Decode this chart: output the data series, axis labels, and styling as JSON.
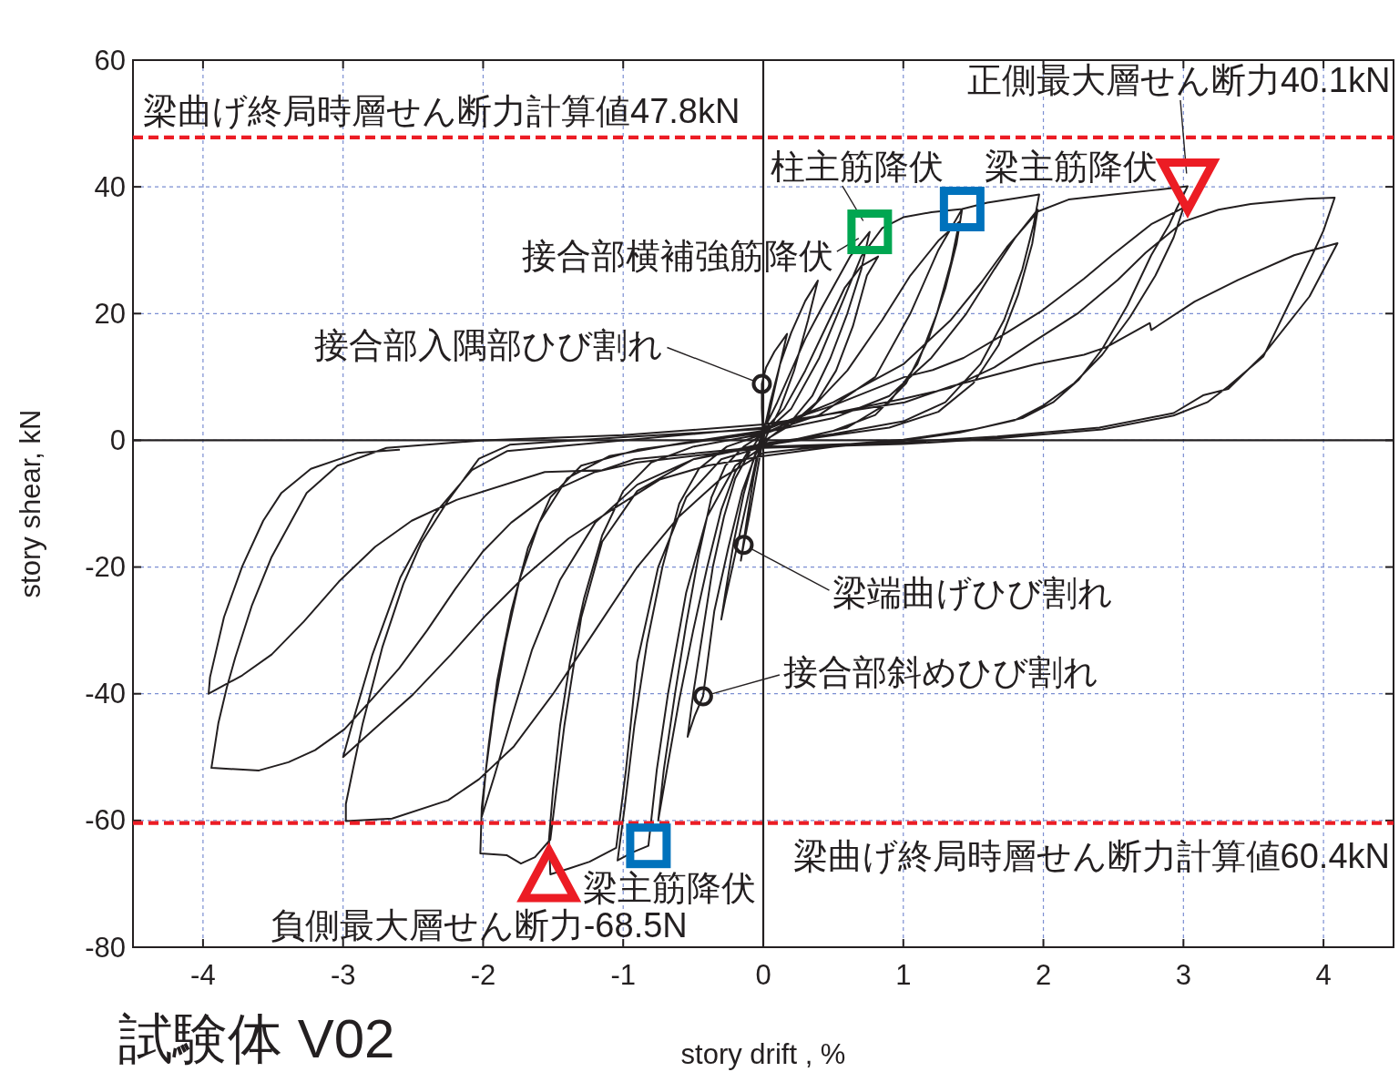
{
  "chart_data": {
    "type": "line",
    "title": "試験体 V02",
    "xlabel": "story drift , %",
    "ylabel": "story shear, kN",
    "xlim": [
      -4.5,
      4.5
    ],
    "ylim": [
      -80,
      60
    ],
    "xticks": [
      -4,
      -3,
      -2,
      -1,
      0,
      1,
      2,
      3,
      4
    ],
    "yticks": [
      -80,
      -60,
      -40,
      -20,
      0,
      20,
      40,
      60
    ],
    "grid": true,
    "series": [
      {
        "color": "#231f20",
        "x": [
          0,
          -0.01,
          -0.01,
          0.02,
          0.08,
          0.17,
          0.12,
          0.06,
          0.02,
          -0.02,
          -0.06,
          -0.1,
          -0.14,
          -0.16,
          -0.12,
          -0.07,
          -0.03,
          0,
          0.05,
          0.12,
          0.2,
          0.3,
          0.39,
          0.32,
          0.22,
          0.12,
          0.03,
          -0.05,
          -0.12,
          -0.2,
          -0.27,
          -0.3,
          -0.27,
          -0.21,
          -0.14,
          -0.07,
          0,
          0.1,
          0.2,
          0.3,
          0.42,
          0.52,
          0.62,
          0.76,
          0.7,
          0.6,
          0.48,
          0.35,
          0.2,
          0.05,
          -0.05,
          -0.15,
          -0.25,
          -0.35,
          -0.43,
          -0.49,
          -0.54,
          -0.5,
          -0.43,
          -0.36,
          -0.28,
          -0.2,
          -0.1,
          0,
          0.15,
          0.3,
          0.45,
          0.58,
          0.7,
          0.82,
          0.74,
          0.64,
          0.52,
          0.38,
          0.2,
          0.05,
          -0.1,
          -0.2,
          -0.3,
          -0.4,
          -0.5,
          -0.6,
          -0.68,
          -0.75,
          -0.71,
          -0.63,
          -0.55,
          -0.46,
          -0.37,
          -0.27,
          -0.14,
          0,
          0.2,
          0.4,
          0.55,
          0.7,
          0.85,
          1.0,
          1.2,
          1.42,
          1.38,
          1.3,
          1.18,
          1.02,
          0.8,
          0.5,
          0.2,
          0,
          -0.2,
          -0.4,
          -0.55,
          -0.68,
          -0.76,
          -0.82,
          -0.93,
          -1.04,
          -0.99,
          -0.92,
          -0.83,
          -0.72,
          -0.6,
          -0.46,
          -0.26,
          0,
          0.3,
          0.6,
          0.85,
          1.05,
          1.25,
          1.4,
          1.34,
          1.24,
          1.1,
          0.9,
          0.6,
          0.3,
          0,
          -0.3,
          -0.55,
          -0.75,
          -0.9,
          -0.98,
          -1.05,
          -1.24,
          -1.39,
          -1.52,
          -1.53,
          -1.5,
          -1.45,
          -1.38,
          -1.28,
          -1.15,
          -1.0,
          -0.8,
          -0.5,
          0,
          0.4,
          0.8,
          1.05,
          1.25,
          1.42,
          1.6,
          1.8,
          1.97,
          1.93,
          1.85,
          1.72,
          1.55,
          1.3,
          1.0,
          0.5,
          0,
          -0.5,
          -0.9,
          -1.15,
          -1.3,
          -1.42,
          -1.52,
          -1.63,
          -1.73,
          -1.83,
          -2.02,
          -2.01,
          -1.96,
          -1.9,
          -1.8,
          -1.68,
          -1.52,
          -1.3,
          -0.9,
          -0.4,
          0,
          0.5,
          0.9,
          1.2,
          1.45,
          1.65,
          1.8,
          1.96,
          1.92,
          1.82,
          1.68,
          1.5,
          1.25,
          0.9,
          0.4,
          0,
          -0.5,
          -0.9,
          -1.2,
          -1.45,
          -1.65,
          -1.8,
          -1.92,
          -2.01,
          -1.98,
          -1.92,
          -1.84,
          -1.74,
          -1.6,
          -1.4,
          -1.1,
          -0.6,
          0,
          0.5,
          1.0,
          1.34,
          1.56,
          1.74,
          1.96,
          2.18,
          2.5,
          2.8,
          3.03,
          2.95,
          2.9,
          2.77,
          2.6,
          2.42,
          2.25,
          2.07,
          1.85,
          1.5,
          1.0,
          0.5,
          0,
          -0.3,
          -0.6,
          -0.9,
          -1.2,
          -1.5,
          -1.78,
          -2.03,
          -2.25,
          -2.65,
          -2.98,
          -2.98,
          -2.93,
          -2.86,
          -2.72,
          -2.57,
          -2.44,
          -2.25,
          -2.03,
          -1.81,
          -1.0,
          0,
          0.5,
          1.01,
          1.21,
          1.43,
          1.74,
          1.98,
          2.29,
          2.49,
          2.77,
          3.0,
          2.93,
          2.8,
          2.62,
          2.42,
          2.22,
          2.0,
          1.8,
          1.4,
          1.0,
          0.5,
          0,
          -0.4,
          -0.74,
          -1.09,
          -1.39,
          -1.71,
          -1.98,
          -2.23,
          -2.5,
          -2.78,
          -3.0,
          -2.92,
          -2.79,
          -2.59,
          -2.35,
          -2.08,
          -1.83,
          -1.0,
          0,
          1.01,
          1.34,
          1.65,
          1.94,
          2.25,
          2.53,
          2.73,
          3.0,
          3.25,
          3.48,
          3.88,
          4.08,
          4.0,
          3.94,
          3.77,
          3.57,
          3.32,
          3.17,
          2.93,
          2.42,
          1.67,
          1.0,
          0,
          -0.9,
          -1.2,
          -1.5,
          -1.8,
          -2.0,
          -2.2,
          -2.4,
          -2.6,
          -2.8,
          -2.99,
          -3.2,
          -3.39,
          -3.6,
          -3.94,
          -3.89,
          -3.83,
          -3.77,
          -3.65,
          -3.51,
          -3.26,
          -3.04,
          -2.69,
          -2.0,
          -1.0,
          0,
          1.01,
          1.34,
          1.94,
          2.29,
          2.45,
          2.76,
          2.77,
          3.08,
          3.39,
          3.79,
          4.1,
          3.9,
          3.57,
          3.32,
          3.14,
          2.93,
          2.4,
          1.67,
          1.0,
          0,
          -0.92,
          -1.15,
          -1.56,
          -2.19,
          -2.51,
          -2.77,
          -3.03,
          -3.28,
          -3.51,
          -3.72,
          -3.96,
          -3.95,
          -3.85,
          -3.72,
          -3.57,
          -3.44,
          -3.23,
          -2.9,
          -2.6
        ],
        "values": [
          0,
          5,
          8.9,
          11.5,
          14,
          16.8,
          12,
          6,
          2,
          -2,
          -7,
          -12,
          -16.5,
          -19,
          -13,
          -6,
          -1.5,
          1,
          6,
          12,
          17,
          22,
          25.2,
          19,
          11,
          5,
          1,
          -3,
          -10,
          -18,
          -25,
          -28.3,
          -24,
          -16,
          -8.5,
          -3,
          1.5,
          6,
          11,
          16,
          21,
          25,
          29,
          32.9,
          27,
          20,
          13,
          7,
          3,
          0.5,
          -2,
          -8,
          -17,
          -27,
          -40.4,
          -43.5,
          -46.8,
          -40,
          -30,
          -20,
          -12,
          -6,
          -2,
          1.5,
          5,
          11,
          18,
          24,
          27.5,
          29,
          26,
          18,
          11,
          6,
          2.5,
          0.5,
          -1.5,
          -5,
          -11,
          -20,
          -30,
          -41,
          -51,
          -60,
          -52,
          -40,
          -29,
          -18,
          -9,
          -4,
          -1,
          1,
          5,
          13,
          21,
          29,
          33.5,
          35.2,
          36,
          36.5,
          31,
          24,
          16,
          9,
          4,
          1.5,
          0,
          -1,
          -4,
          -12,
          -24,
          -40,
          -52,
          -64,
          -65,
          -66.3,
          -58,
          -45,
          -32,
          -20,
          -10,
          -4.5,
          -1,
          1,
          4,
          11,
          19,
          26,
          31.5,
          34.5,
          28,
          20,
          12,
          6,
          2,
          0.5,
          -1,
          -3,
          -9,
          -20,
          -35,
          -52,
          -64.3,
          -66.5,
          -67.6,
          -68.5,
          -63,
          -55,
          -45,
          -35,
          -25,
          -15,
          -8,
          -3.5,
          -1,
          1,
          4,
          10,
          20,
          30,
          36.5,
          37.5,
          38.2,
          38.8,
          34,
          27,
          19,
          12,
          6,
          3,
          1,
          -0.5,
          -3,
          -8,
          -16,
          -28,
          -45,
          -63,
          -65.8,
          -66.8,
          -65.5,
          -65.2,
          -58,
          -48,
          -38,
          -27,
          -17,
          -9,
          -4,
          -1.5,
          0,
          1.2,
          3.5,
          7,
          13,
          20,
          27,
          32,
          36.4,
          31,
          23,
          15,
          9,
          4.5,
          2,
          0.5,
          -0.8,
          -3,
          -7,
          -13,
          -22,
          -33,
          -44,
          -53,
          -59.4,
          -52,
          -42,
          -32,
          -22,
          -13,
          -6,
          -2.5,
          -0.5,
          1.5,
          6,
          12,
          19,
          25,
          30.5,
          36.1,
          38,
          38.8,
          39.5,
          40.1,
          36.5,
          34.1,
          29.2,
          21.3,
          14.4,
          9.5,
          6,
          3.5,
          1.7,
          0.1,
          -0.8,
          -2,
          -6,
          -12,
          -20,
          -30,
          -40,
          -48.3,
          -53.5,
          -56.8,
          -59.7,
          -60.1,
          -57.4,
          -52,
          -44.7,
          -32.7,
          -22.7,
          -16.1,
          -9.5,
          -2.9,
          -0.7,
          0.5,
          1.8,
          5.5,
          10,
          11.1,
          13,
          17,
          20.3,
          25.5,
          29.2,
          34.1,
          36.7,
          32,
          26,
          19.5,
          13.5,
          9,
          5.5,
          3.2,
          1.2,
          0,
          -1,
          -2.5,
          -4,
          -6.2,
          -11.1,
          -15.5,
          -21.6,
          -27.6,
          -33.8,
          -40.1,
          -45.6,
          -50,
          -43.6,
          -33.8,
          -21.6,
          -11.7,
          -4.7,
          -1.7,
          0,
          2,
          6.6,
          8.3,
          11.5,
          15.7,
          20.1,
          25.3,
          29.6,
          34.5,
          36.4,
          37.3,
          38.1,
          38.3,
          33.1,
          30.2,
          22.3,
          13.2,
          8.5,
          6,
          3.9,
          1.7,
          0.3,
          -0.6,
          -1.2,
          -3.5,
          -5,
          -8,
          -13,
          -17.5,
          -23.5,
          -30,
          -36,
          -41,
          -45.6,
          -48.9,
          -50.8,
          -52.1,
          -51.7,
          -44.6,
          -39,
          -34.3,
          -26,
          -18.4,
          -8.3,
          -4,
          -1.2,
          0,
          0.8,
          2.5,
          6,
          8.5,
          12,
          13.5,
          14.7,
          18.5,
          17.4,
          21.9,
          25.3,
          29.2,
          31.1,
          22.7,
          13.5,
          8.1,
          7.1,
          4.3,
          2,
          0.6,
          -0.3,
          -1,
          -3,
          -4.7,
          -5,
          -9.4,
          -12.7,
          -16.8,
          -22.3,
          -28.6,
          -33.8,
          -37.1,
          -40,
          -37.4,
          -27.9,
          -19.9,
          -12.7,
          -8.3,
          -4.5,
          -2,
          -1.5
        ]
      },
      {
        "type": "scatter",
        "marker": "circle",
        "color": "#231f20",
        "x": [
          -0.01,
          -0.14,
          -0.43
        ],
        "values": [
          8.9,
          -16.5,
          -40.4
        ]
      },
      {
        "type": "scatter",
        "marker": "square",
        "color": "#00a651",
        "x": [
          0.76
        ],
        "values": [
          32.9
        ]
      },
      {
        "type": "scatter",
        "marker": "square",
        "color": "#0072bc",
        "x": [
          1.42,
          -0.82
        ],
        "values": [
          36.5,
          -64
        ]
      },
      {
        "type": "scatter",
        "marker": "triangle",
        "color": "#ec1c24",
        "x": [
          3.03,
          -1.53
        ],
        "values": [
          40.1,
          -68.5
        ]
      }
    ],
    "ref_lines": [
      {
        "axis": "y",
        "value": 47.8,
        "label": "梁曲げ終局時層せん断力計算値47.8kN",
        "color": "#ec1c24",
        "line_style": "dashed"
      },
      {
        "axis": "y",
        "value": -60.4,
        "label": "梁曲げ終局時層せん断力計算値60.4kN",
        "color": "#ec1c24",
        "line_style": "dashed"
      }
    ],
    "annotations": [
      {
        "text": "正側最大層せん断力40.1kN",
        "x": 3.03,
        "y": 40.1
      },
      {
        "text": "梁主筋降伏",
        "x": 1.42,
        "y": 36.5
      },
      {
        "text": "柱主筋降伏",
        "x": 0.76,
        "y": 32.9
      },
      {
        "text": "接合部横補強筋降伏",
        "x": 0.76,
        "y": 32.9
      },
      {
        "text": "接合部入隅部ひび割れ",
        "x": -0.01,
        "y": 8.9
      },
      {
        "text": "梁端曲げひび割れ",
        "x": -0.14,
        "y": -16.5
      },
      {
        "text": "接合部斜めひび割れ",
        "x": -0.43,
        "y": -40.4
      },
      {
        "text": "梁主筋降伏",
        "x": -0.82,
        "y": -64
      },
      {
        "text": "負側最大層せん断力-68.5N",
        "x": -1.53,
        "y": -68.5
      }
    ]
  }
}
